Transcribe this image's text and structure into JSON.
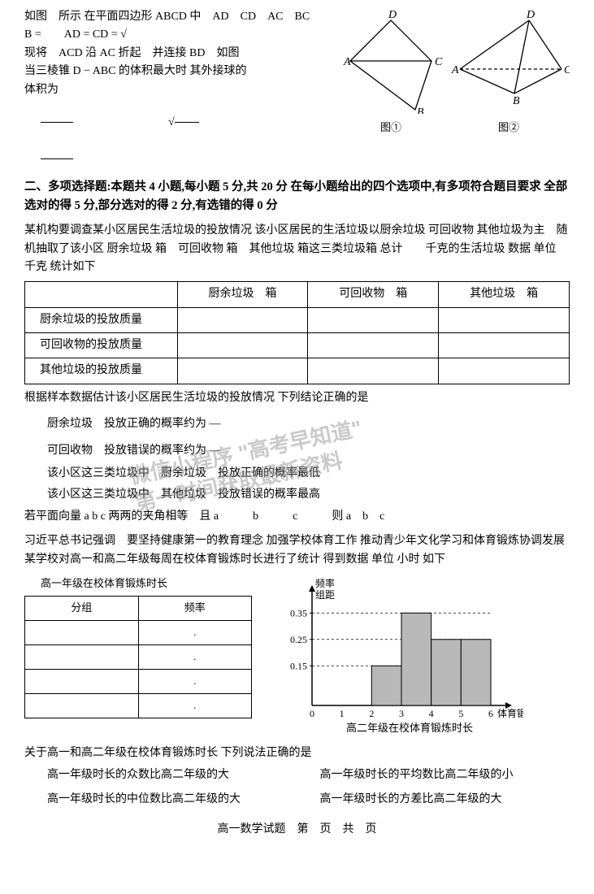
{
  "q8": {
    "line1": "如图　所示 在平面四边形 ABCD 中　AD　CD　AC　BC　　B =　　AD = CD = √",
    "line2": "现将　ACD 沿 AC 折起　并连接 BD　如图",
    "line3": "当三棱锥 D − ABC 的体积最大时 其外接球的",
    "line4": "体积为",
    "opt_sqrt": "√",
    "fig1_label": "图①",
    "fig2_label": "图②",
    "labels": {
      "A": "A",
      "B": "B",
      "C": "C",
      "D": "D"
    }
  },
  "section2": {
    "head": "二、多项选择题:本题共 4 小题,每小题 5 分,共 20 分 在每小题给出的四个选项中,有多项符合题目要求 全部选对的得 5 分,部分选对的得 2 分,有选错的得 0 分"
  },
  "q9": {
    "p1": "某机构要调查某小区居民生活垃圾的投放情况 该小区居民的生活垃圾以厨余垃圾 可回收物 其他垃圾为主　随机抽取了该小区 厨余垃圾 箱　可回收物 箱　其他垃圾 箱这三类垃圾箱 总计　　千克的生活垃圾 数据 单位 千克 统计如下",
    "table": {
      "cols": [
        "",
        "厨余垃圾　箱",
        "可回收物　箱",
        "其他垃圾　箱"
      ],
      "rows": [
        [
          "厨余垃圾的投放质量",
          "",
          "",
          ""
        ],
        [
          "可回收物的投放质量",
          "",
          "",
          ""
        ],
        [
          "其他垃圾的投放质量",
          "",
          "",
          ""
        ]
      ]
    },
    "after": "根据样本数据估计该小区居民生活垃圾的投放情况 下列结论正确的是",
    "optA": "厨余垃圾　投放正确的概率约为 —",
    "optB": "可回收物　投放错误的概率约为 —",
    "optC": "该小区这三类垃圾中　厨余垃圾　投放正确的概率最低",
    "optD": "该小区这三类垃圾中　其他垃圾　投放错误的概率最高"
  },
  "q10": {
    "text": "若平面向量 a  b  c 两两的夹角相等　且 a　　　b　　　c　　　则 a　b　c"
  },
  "q11": {
    "p1": "习近平总书记强调　要坚持健康第一的教育理念 加强学校体育工作 推动青少年文化学习和体育锻炼协调发展 某学校对高一和高二年级每周在校体育锻炼时长进行了统计 得到数据 单位 小时 如下",
    "t1_title": "高一年级在校体育锻炼时长",
    "t1": {
      "head": [
        "分组",
        "频率"
      ],
      "rows": [
        [
          "",
          "."
        ],
        [
          "",
          "."
        ],
        [
          "",
          "."
        ],
        [
          "",
          "."
        ]
      ]
    },
    "chart": {
      "ylabel1": "频率",
      "ylabel2": "组距",
      "yticks": [
        "0.15",
        "0.25",
        "0.35"
      ],
      "ytick_vals": [
        0.15,
        0.25,
        0.35
      ],
      "xticks": [
        "0",
        "1",
        "2",
        "3",
        "4",
        "5",
        "6"
      ],
      "xlabel": "体育锻炼时长",
      "bars": [
        {
          "x0": 2,
          "x1": 3,
          "h": 0.15
        },
        {
          "x0": 3,
          "x1": 4,
          "h": 0.35
        },
        {
          "x0": 4,
          "x1": 5,
          "h": 0.25
        },
        {
          "x0": 5,
          "x1": 6,
          "h": 0.25
        }
      ],
      "bar_fill": "#b8b8b8",
      "bar_stroke": "#000000",
      "caption": "高二年级在校体育锻炼时长"
    },
    "after": "关于高一和高二年级在校体育锻炼时长 下列说法正确的是",
    "optA": "高一年级时长的众数比高二年级的大",
    "optB": "高一年级时长的平均数比高二年级的小",
    "optC": "高一年级时长的中位数比高二年级的大",
    "optD": "高一年级时长的方差比高二年级的大"
  },
  "footer": "高一数学试题　第　页　共　页",
  "watermark": {
    "l1": "微信小程序 \"高考早知道\"",
    "l2": "第一时间获取最新资料"
  }
}
